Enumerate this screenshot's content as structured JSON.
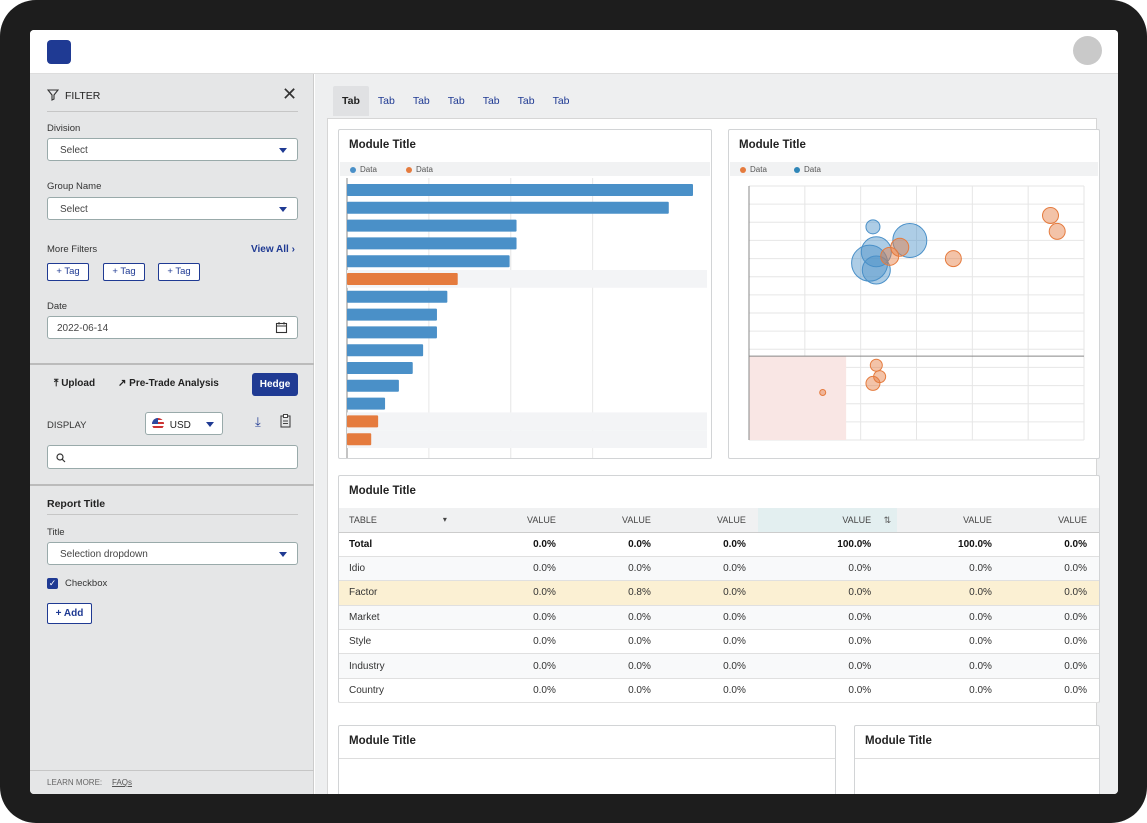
{
  "filter": {
    "title": "FILTER",
    "division": {
      "label": "Division",
      "value": "Select"
    },
    "group": {
      "label": "Group Name",
      "value": "Select"
    },
    "more": {
      "label": "More Filters",
      "view_all": "View All"
    },
    "tags": [
      "+ Tag",
      "+ Tag",
      "+ Tag"
    ],
    "date": {
      "label": "Date",
      "value": "2022-06-14"
    }
  },
  "actions": {
    "upload": "Upload",
    "pretrade": "Pre-Trade Analysis",
    "hedge": "Hedge"
  },
  "display": {
    "label": "DISPLAY",
    "currency": "USD"
  },
  "report": {
    "title": "Report Title",
    "field_label": "Title",
    "dropdown": "Selection dropdown",
    "checkbox": "Checkbox",
    "add": "+ Add"
  },
  "footer": {
    "learn": "LEARN MORE:",
    "faqs": "FAQs"
  },
  "tabs": [
    "Tab",
    "Tab",
    "Tab",
    "Tab",
    "Tab",
    "Tab",
    "Tab"
  ],
  "colors": {
    "blue": "#4a90c8",
    "orange": "#e57b3e",
    "navy": "#1f3a93"
  },
  "modules": {
    "bar_title": "Module Title",
    "bubble_title": "Module Title",
    "table_title": "Module Title",
    "bottom_left_title": "Module Title",
    "bottom_right_title": "Module Title"
  },
  "chart_data": [
    {
      "type": "bar",
      "legend": [
        "Data",
        "Data"
      ],
      "values": [
        100,
        93,
        49,
        49,
        47,
        32,
        29,
        26,
        26,
        22,
        19,
        15,
        11,
        9,
        7
      ],
      "series_index": [
        0,
        0,
        0,
        0,
        0,
        1,
        0,
        0,
        0,
        0,
        0,
        0,
        0,
        1,
        1
      ]
    },
    {
      "type": "scatter",
      "legend": [
        "Data",
        "Data"
      ],
      "points": [
        {
          "x": 0.92,
          "y": 0.55,
          "r": 8,
          "s": 1
        },
        {
          "x": 0.9,
          "y": 0.62,
          "r": 8,
          "s": 1
        },
        {
          "x": 0.48,
          "y": 0.51,
          "r": 17,
          "s": 0
        },
        {
          "x": 0.37,
          "y": 0.57,
          "r": 7,
          "s": 0
        },
        {
          "x": 0.38,
          "y": 0.46,
          "r": 15,
          "s": 0
        },
        {
          "x": 0.36,
          "y": 0.41,
          "r": 18,
          "s": 0
        },
        {
          "x": 0.38,
          "y": 0.38,
          "r": 14,
          "s": 0
        },
        {
          "x": 0.45,
          "y": 0.48,
          "r": 9,
          "s": 1
        },
        {
          "x": 0.42,
          "y": 0.44,
          "r": 9,
          "s": 1
        },
        {
          "x": 0.61,
          "y": 0.43,
          "r": 8,
          "s": 1
        },
        {
          "x": 0.38,
          "y": -0.04,
          "r": 6,
          "s": 1
        },
        {
          "x": 0.39,
          "y": -0.09,
          "r": 6,
          "s": 1
        },
        {
          "x": 0.37,
          "y": -0.12,
          "r": 7,
          "s": 1
        },
        {
          "x": 0.22,
          "y": -0.16,
          "r": 3,
          "s": 1
        }
      ]
    }
  ],
  "table": {
    "columns": [
      "TABLE",
      "VALUE",
      "VALUE",
      "VALUE",
      "VALUE",
      "VALUE",
      "VALUE"
    ],
    "rows": [
      [
        "Total",
        "0.0%",
        "0.0%",
        "0.0%",
        "100.0%",
        "100.0%",
        "0.0%"
      ],
      [
        "Idio",
        "0.0%",
        "0.0%",
        "0.0%",
        "0.0%",
        "0.0%",
        "0.0%"
      ],
      [
        "Factor",
        "0.0%",
        "0.8%",
        "0.0%",
        "0.0%",
        "0.0%",
        "0.0%"
      ],
      [
        "Market",
        "0.0%",
        "0.0%",
        "0.0%",
        "0.0%",
        "0.0%",
        "0.0%"
      ],
      [
        "Style",
        "0.0%",
        "0.0%",
        "0.0%",
        "0.0%",
        "0.0%",
        "0.0%"
      ],
      [
        "Industry",
        "0.0%",
        "0.0%",
        "0.0%",
        "0.0%",
        "0.0%",
        "0.0%"
      ],
      [
        "Country",
        "0.0%",
        "0.0%",
        "0.0%",
        "0.0%",
        "0.0%",
        "0.0%"
      ]
    ]
  }
}
